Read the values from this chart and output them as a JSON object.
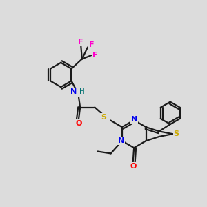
{
  "bg_color": "#dcdcdc",
  "bond_color": "#1a1a1a",
  "bond_width": 1.6,
  "atom_colors": {
    "N": "#0000ee",
    "S": "#ccaa00",
    "O": "#ff0000",
    "F": "#ff00cc",
    "H": "#007070",
    "C": "#1a1a1a"
  },
  "fig_size": [
    3.0,
    3.0
  ],
  "dpi": 100,
  "xlim": [
    0,
    10
  ],
  "ylim": [
    0,
    10
  ],
  "font_size": 7.5
}
